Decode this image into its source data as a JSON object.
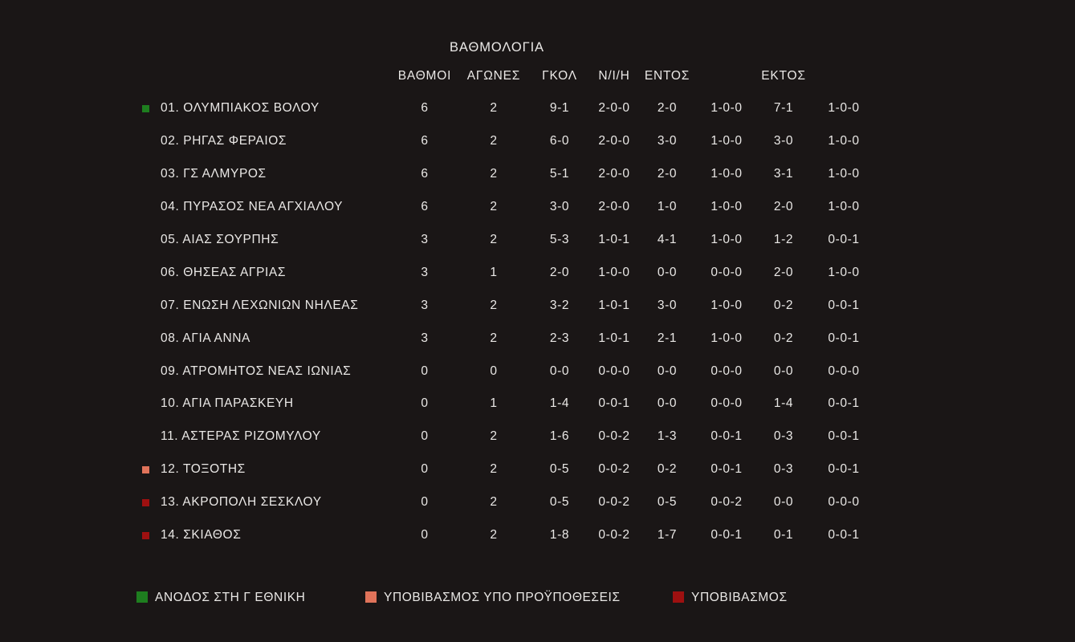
{
  "title": "ΒΑΘΜΟΛΟΓΙΑ",
  "columns": [
    "ΒΑΘΜΟΙ",
    "ΑΓΩΝΕΣ",
    "ΓΚΟΛ",
    "Ν/Ι/Η",
    "ΕΝΤΟΣ",
    "",
    "ΕΚΤΟΣ",
    ""
  ],
  "chart_data": {
    "type": "table",
    "title": "ΒΑΘΜΟΛΟΓΙΑ",
    "headers": [
      "ΒΑΘΜΟΙ",
      "ΑΓΩΝΕΣ",
      "ΓΚΟΛ",
      "Ν/Ι/Η",
      "ΕΝΤΟΣ",
      "",
      "ΕΚΤΟΣ",
      ""
    ]
  },
  "teams": [
    {
      "rank": "01.",
      "name": "ΟΛΥΜΠΙΑΚΟΣ ΒΟΛΟΥ",
      "marker": "promotion",
      "points": "6",
      "games": "2",
      "goals": "9-1",
      "wdl": "2-0-0",
      "home_goals": "2-0",
      "home_wdl": "1-0-0",
      "away_goals": "7-1",
      "away_wdl": "1-0-0"
    },
    {
      "rank": "02.",
      "name": "ΡΗΓΑΣ ΦΕΡΑΙΟΣ",
      "marker": "",
      "points": "6",
      "games": "2",
      "goals": "6-0",
      "wdl": "2-0-0",
      "home_goals": "3-0",
      "home_wdl": "1-0-0",
      "away_goals": "3-0",
      "away_wdl": "1-0-0"
    },
    {
      "rank": "03.",
      "name": "ΓΣ ΑΛΜΥΡΟΣ",
      "marker": "",
      "points": "6",
      "games": "2",
      "goals": "5-1",
      "wdl": "2-0-0",
      "home_goals": "2-0",
      "home_wdl": "1-0-0",
      "away_goals": "3-1",
      "away_wdl": "1-0-0"
    },
    {
      "rank": "04.",
      "name": "ΠΥΡΑΣΟΣ ΝΕΑ ΑΓΧΙΑΛΟΥ",
      "marker": "",
      "points": "6",
      "games": "2",
      "goals": "3-0",
      "wdl": "2-0-0",
      "home_goals": "1-0",
      "home_wdl": "1-0-0",
      "away_goals": "2-0",
      "away_wdl": "1-0-0"
    },
    {
      "rank": "05.",
      "name": "ΑΙΑΣ ΣΟΥΡΠΗΣ",
      "marker": "",
      "points": "3",
      "games": "2",
      "goals": "5-3",
      "wdl": "1-0-1",
      "home_goals": "4-1",
      "home_wdl": "1-0-0",
      "away_goals": "1-2",
      "away_wdl": "0-0-1"
    },
    {
      "rank": "06.",
      "name": "ΘΗΣΕΑΣ ΑΓΡΙΑΣ",
      "marker": "",
      "points": "3",
      "games": "1",
      "goals": "2-0",
      "wdl": "1-0-0",
      "home_goals": "0-0",
      "home_wdl": "0-0-0",
      "away_goals": "2-0",
      "away_wdl": "1-0-0"
    },
    {
      "rank": "07.",
      "name": "ΕΝΩΣΗ ΛΕΧΩΝΙΩΝ ΝΗΛΕΑΣ",
      "marker": "",
      "points": "3",
      "games": "2",
      "goals": "3-2",
      "wdl": "1-0-1",
      "home_goals": "3-0",
      "home_wdl": "1-0-0",
      "away_goals": "0-2",
      "away_wdl": "0-0-1"
    },
    {
      "rank": "08.",
      "name": "ΑΓΙΑ ΑΝΝΑ",
      "marker": "",
      "points": "3",
      "games": "2",
      "goals": "2-3",
      "wdl": "1-0-1",
      "home_goals": "2-1",
      "home_wdl": "1-0-0",
      "away_goals": "0-2",
      "away_wdl": "0-0-1"
    },
    {
      "rank": "09.",
      "name": "ΑΤΡΟΜΗΤΟΣ ΝΕΑΣ ΙΩΝΙΑΣ",
      "marker": "",
      "points": "0",
      "games": "0",
      "goals": "0-0",
      "wdl": "0-0-0",
      "home_goals": "0-0",
      "home_wdl": "0-0-0",
      "away_goals": "0-0",
      "away_wdl": "0-0-0"
    },
    {
      "rank": "10.",
      "name": "ΑΓΙΑ ΠΑΡΑΣΚΕΥΗ",
      "marker": "",
      "points": "0",
      "games": "1",
      "goals": "1-4",
      "wdl": "0-0-1",
      "home_goals": "0-0",
      "home_wdl": "0-0-0",
      "away_goals": "1-4",
      "away_wdl": "0-0-1"
    },
    {
      "rank": "11.",
      "name": "ΑΣΤΕΡΑΣ ΡΙΖΟΜΥΛΟΥ",
      "marker": "",
      "points": "0",
      "games": "2",
      "goals": "1-6",
      "wdl": "0-0-2",
      "home_goals": "1-3",
      "home_wdl": "0-0-1",
      "away_goals": "0-3",
      "away_wdl": "0-0-1"
    },
    {
      "rank": "12.",
      "name": "ΤΟΞΟΤΗΣ",
      "marker": "conditional-relegation",
      "points": "0",
      "games": "2",
      "goals": "0-5",
      "wdl": "0-0-2",
      "home_goals": "0-2",
      "home_wdl": "0-0-1",
      "away_goals": "0-3",
      "away_wdl": "0-0-1"
    },
    {
      "rank": "13.",
      "name": "ΑΚΡΟΠΟΛΗ ΣΕΣΚΛΟΥ",
      "marker": "relegation",
      "points": "0",
      "games": "2",
      "goals": "0-5",
      "wdl": "0-0-2",
      "home_goals": "0-5",
      "home_wdl": "0-0-2",
      "away_goals": "0-0",
      "away_wdl": "0-0-0"
    },
    {
      "rank": "14.",
      "name": "ΣΚΙΑΘΟΣ",
      "marker": "relegation",
      "points": "0",
      "games": "2",
      "goals": "1-8",
      "wdl": "0-0-2",
      "home_goals": "1-7",
      "home_wdl": "0-0-1",
      "away_goals": "0-1",
      "away_wdl": "0-0-1"
    }
  ],
  "legend": [
    {
      "label": "ΑΝΟΔΟΣ ΣΤΗ Γ ΕΘΝΙΚΗ",
      "type": "promotion"
    },
    {
      "label": "ΥΠΟΒΙΒΑΣΜΟΣ ΥΠΟ ΠΡΟΫΠΟΘΕΣΕΙΣ",
      "type": "conditional-relegation"
    },
    {
      "label": "ΥΠΟΒΙΒΑΣΜΟΣ",
      "type": "relegation"
    }
  ],
  "colors": {
    "background": "#1a1616",
    "text": "#eae8e6",
    "promotion_green": "#1e7e1f",
    "conditional_relegation_salmon": "#e0735a",
    "relegation_red": "#9e1010"
  }
}
